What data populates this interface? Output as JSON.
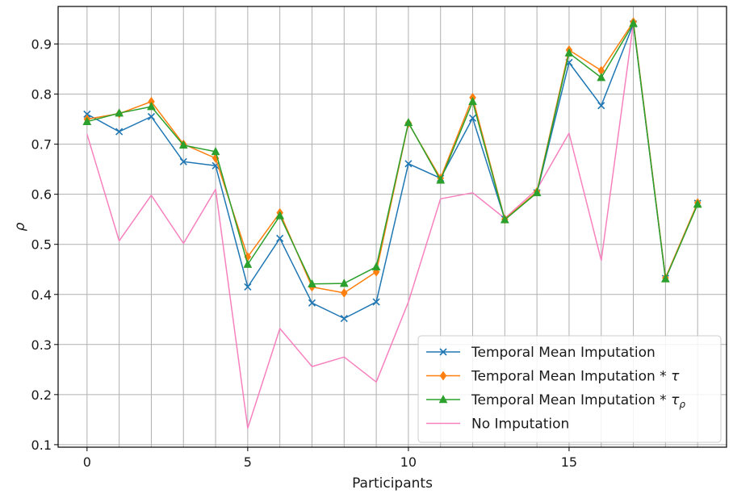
{
  "chart_data": {
    "type": "line",
    "title": "",
    "xlabel": "Participants",
    "ylabel": "ρ",
    "xlim": [
      -0.9,
      19.9
    ],
    "ylim": [
      0.095,
      0.975
    ],
    "xticks": [
      0,
      5,
      10,
      15
    ],
    "x_minor_grid": [
      0,
      1,
      2,
      3,
      4,
      5,
      6,
      7,
      8,
      9,
      10,
      11,
      12,
      13,
      14,
      15,
      16,
      17,
      18,
      19
    ],
    "yticks": [
      0.1,
      0.2,
      0.3,
      0.4,
      0.5,
      0.6,
      0.7,
      0.8,
      0.9
    ],
    "grid": true,
    "legend_position": "lower-right",
    "x": [
      0,
      1,
      2,
      3,
      4,
      5,
      6,
      7,
      8,
      9,
      10,
      11,
      12,
      13,
      14,
      15,
      16,
      17,
      18,
      19
    ],
    "series": [
      {
        "name": "Temporal Mean Imputation",
        "color": "#1f77b4",
        "marker": "x",
        "values": [
          0.76,
          0.725,
          0.755,
          0.665,
          0.657,
          0.415,
          0.512,
          0.383,
          0.352,
          0.385,
          0.661,
          0.632,
          0.752,
          0.55,
          0.603,
          0.863,
          0.777,
          0.94,
          0.432,
          0.582
        ]
      },
      {
        "name": "Temporal Mean Imputation * τ",
        "color": "#ff7f0e",
        "marker": "diamond",
        "values": [
          0.75,
          0.761,
          0.785,
          0.7,
          0.672,
          0.475,
          0.563,
          0.415,
          0.403,
          0.445,
          0.742,
          0.632,
          0.793,
          0.55,
          0.605,
          0.888,
          0.847,
          0.944,
          0.433,
          0.583
        ]
      },
      {
        "name": "Temporal Mean Imputation * τρ",
        "color": "#2ca02c",
        "marker": "triangle",
        "values": [
          0.745,
          0.762,
          0.775,
          0.698,
          0.685,
          0.46,
          0.557,
          0.421,
          0.422,
          0.455,
          0.743,
          0.628,
          0.785,
          0.549,
          0.603,
          0.882,
          0.833,
          0.941,
          0.431,
          0.58
        ]
      },
      {
        "name": "No Imputation",
        "color": "#f781bf",
        "marker": "none",
        "values": [
          0.72,
          0.507,
          0.598,
          0.502,
          0.61,
          0.133,
          0.332,
          0.256,
          0.275,
          0.225,
          0.385,
          0.591,
          0.603,
          0.552,
          0.61,
          0.722,
          0.468,
          0.942,
          0.433,
          0.582
        ]
      }
    ]
  }
}
